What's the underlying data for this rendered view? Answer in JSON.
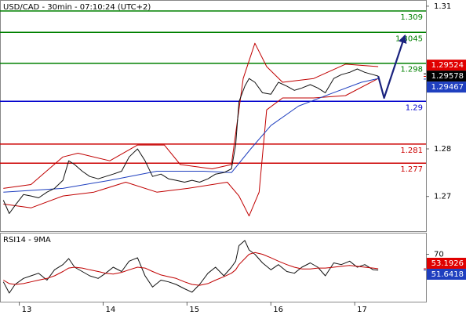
{
  "chart_data": [
    {
      "type": "line",
      "title": "USD/CAD - 30min - 07:10:24 (UTC+2)",
      "xlim": [
        12.77,
        17.85
      ],
      "ylim": [
        1.2627,
        1.3113
      ],
      "yticks": [
        1.27,
        1.28,
        1.31
      ],
      "series": [
        {
          "color": "#c00000",
          "x": [
            12.81,
            13.14,
            13.52,
            13.7,
            14.08,
            14.41,
            14.73,
            14.92,
            15.3,
            15.53,
            15.67,
            15.81,
            15.95,
            16.14,
            16.51,
            16.89,
            17.28
          ],
          "values": [
            1.2717,
            1.2725,
            1.2783,
            1.2791,
            1.2775,
            1.2808,
            1.2808,
            1.2767,
            1.2758,
            1.2767,
            1.2948,
            1.3022,
            1.2973,
            1.294,
            1.2948,
            1.2978,
            1.2973
          ]
        },
        {
          "color": "#c00000",
          "x": [
            12.81,
            13.14,
            13.52,
            13.89,
            14.27,
            14.64,
            15.01,
            15.48,
            15.62,
            15.74,
            15.86,
            15.95,
            16.14,
            16.51,
            16.89,
            17.28
          ],
          "values": [
            1.2684,
            1.2676,
            1.2701,
            1.2709,
            1.273,
            1.2709,
            1.2717,
            1.273,
            1.2701,
            1.2659,
            1.2709,
            1.2882,
            1.2907,
            1.2907,
            1.2912,
            1.2948
          ]
        },
        {
          "color": "#1f3fbf",
          "x": [
            12.81,
            13.52,
            14.08,
            14.64,
            15.2,
            15.53,
            15.76,
            16.0,
            16.33,
            16.7,
            17.08,
            17.28
          ],
          "values": [
            1.2709,
            1.2717,
            1.2734,
            1.2753,
            1.2753,
            1.275,
            1.28,
            1.2849,
            1.289,
            1.2915,
            1.294,
            1.2948
          ]
        },
        {
          "color": "#111111",
          "x": [
            12.81,
            12.88,
            12.95,
            13.05,
            13.14,
            13.23,
            13.33,
            13.42,
            13.52,
            13.59,
            13.66,
            13.75,
            13.84,
            13.94,
            14.03,
            14.12,
            14.22,
            14.31,
            14.41,
            14.5,
            14.59,
            14.69,
            14.78,
            14.87,
            14.97,
            15.06,
            15.15,
            15.25,
            15.34,
            15.44,
            15.53,
            15.58,
            15.62,
            15.69,
            15.74,
            15.81,
            15.9,
            16.0,
            16.09,
            16.19,
            16.28,
            16.37,
            16.47,
            16.56,
            16.65,
            16.75,
            16.84,
            16.94,
            17.03,
            17.12,
            17.22,
            17.28
          ],
          "values": [
            1.2692,
            1.2664,
            1.2681,
            1.2704,
            1.2701,
            1.2697,
            1.2709,
            1.2717,
            1.2734,
            1.2775,
            1.2767,
            1.2753,
            1.2742,
            1.2737,
            1.2742,
            1.2747,
            1.2753,
            1.2783,
            1.28,
            1.2775,
            1.2742,
            1.2747,
            1.2737,
            1.2734,
            1.273,
            1.2734,
            1.273,
            1.2737,
            1.2747,
            1.275,
            1.2758,
            1.2808,
            1.2899,
            1.2932,
            1.2948,
            1.294,
            1.2918,
            1.2915,
            1.294,
            1.2932,
            1.2923,
            1.2928,
            1.2935,
            1.2928,
            1.2918,
            1.2948,
            1.2956,
            1.2961,
            1.2968,
            1.2961,
            1.2956,
            1.2953
          ]
        }
      ],
      "forecast": {
        "color": "#1a237e",
        "x": [
          17.28,
          17.35,
          17.59
        ],
        "values": [
          1.2953,
          1.2907,
          1.3034
        ]
      },
      "levels": [
        {
          "value": 1.309,
          "color": "#008000"
        },
        {
          "value": 1.3045,
          "color": "#008000"
        },
        {
          "value": 1.298,
          "color": "#008000"
        },
        {
          "value": 1.29,
          "color": "#0000cc"
        },
        {
          "value": 1.281,
          "color": "#cc0000"
        },
        {
          "value": 1.277,
          "color": "#cc0000"
        }
      ],
      "price_tags": [
        {
          "value": 1.29524,
          "color": "#e00000"
        },
        {
          "value": 1.29578,
          "color": "#000000"
        },
        {
          "value": 1.29467,
          "color": "#1f3fbf"
        }
      ]
    },
    {
      "type": "line",
      "title": "RSI14 - 9MA",
      "xlim": [
        12.77,
        17.85
      ],
      "xticks": [
        13,
        14,
        15,
        16,
        17
      ],
      "ylim": [
        15,
        95
      ],
      "yticks": [
        70
      ],
      "series": [
        {
          "color": "#111111",
          "x": [
            12.81,
            12.88,
            12.95,
            13.05,
            13.14,
            13.23,
            13.33,
            13.42,
            13.52,
            13.59,
            13.66,
            13.75,
            13.84,
            13.94,
            14.03,
            14.12,
            14.22,
            14.31,
            14.41,
            14.5,
            14.59,
            14.69,
            14.78,
            14.87,
            14.97,
            15.06,
            15.15,
            15.25,
            15.34,
            15.44,
            15.53,
            15.58,
            15.62,
            15.69,
            15.74,
            15.81,
            15.9,
            16.0,
            16.09,
            16.19,
            16.28,
            16.37,
            16.47,
            16.56,
            16.65,
            16.75,
            16.84,
            16.94,
            17.03,
            17.12,
            17.22,
            17.28
          ],
          "values": [
            38,
            25,
            35,
            42,
            45,
            48,
            40,
            52,
            58,
            65,
            55,
            50,
            45,
            42,
            48,
            55,
            50,
            62,
            66,
            45,
            32,
            40,
            38,
            35,
            30,
            26,
            35,
            48,
            55,
            45,
            55,
            62,
            80,
            86,
            75,
            70,
            60,
            52,
            58,
            50,
            48,
            55,
            60,
            55,
            45,
            60,
            58,
            62,
            55,
            58,
            52,
            51.6418
          ]
        },
        {
          "color": "#c00000",
          "x": [
            12.81,
            12.88,
            12.95,
            13.05,
            13.14,
            13.23,
            13.33,
            13.42,
            13.52,
            13.59,
            13.66,
            13.75,
            13.84,
            13.94,
            14.03,
            14.12,
            14.22,
            14.31,
            14.41,
            14.5,
            14.59,
            14.69,
            14.78,
            14.87,
            14.97,
            15.06,
            15.15,
            15.25,
            15.34,
            15.44,
            15.53,
            15.58,
            15.62,
            15.69,
            15.74,
            15.81,
            15.9,
            16.0,
            16.09,
            16.19,
            16.28,
            16.37,
            16.47,
            16.56,
            16.65,
            16.75,
            16.84,
            16.94,
            17.03,
            17.12,
            17.22,
            17.28
          ],
          "values": [
            40,
            36,
            35,
            36,
            38,
            40,
            42,
            45,
            50,
            54,
            55,
            54,
            52,
            50,
            48,
            47,
            49,
            52,
            55,
            54,
            50,
            46,
            44,
            42,
            38,
            35,
            34,
            36,
            40,
            44,
            48,
            52,
            58,
            65,
            70,
            72,
            70,
            66,
            62,
            58,
            55,
            53,
            53,
            54,
            54,
            55,
            56,
            57,
            56,
            55,
            54,
            53.1926
          ]
        }
      ],
      "price_tags": [
        {
          "value": 53.1926,
          "color": "#e00000"
        },
        {
          "value": 51.6418,
          "color": "#1f3fbf"
        }
      ]
    }
  ]
}
